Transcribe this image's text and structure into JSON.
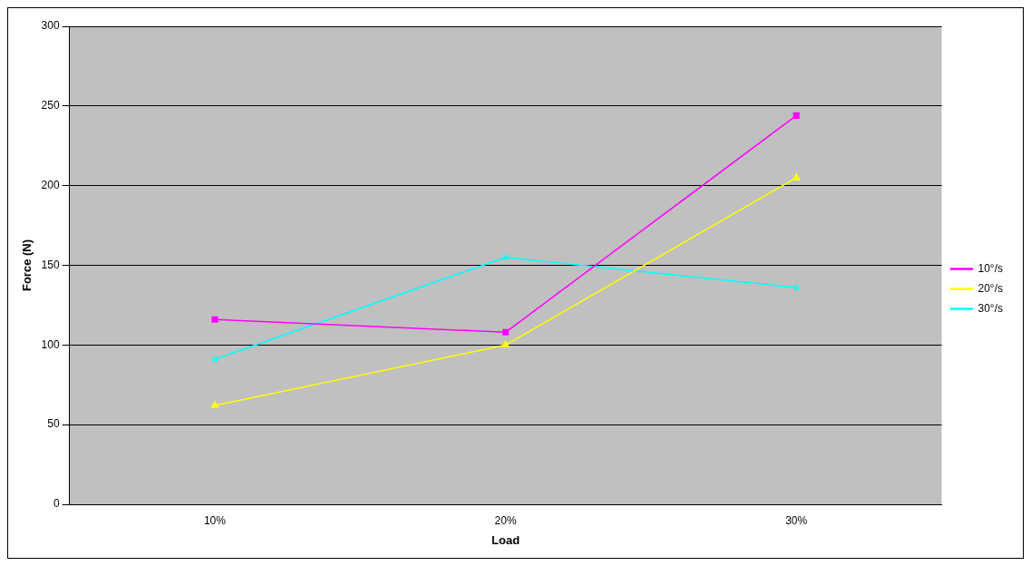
{
  "chart_data": {
    "type": "line",
    "xlabel": "Load",
    "ylabel": "Force (N)",
    "categories": [
      "10%",
      "20%",
      "30%"
    ],
    "series": [
      {
        "name": "10°/s",
        "color": "#ff00ff",
        "marker": "square",
        "values": [
          116,
          108,
          244
        ]
      },
      {
        "name": "20°/s",
        "color": "#ffff00",
        "marker": "triangle",
        "values": [
          62,
          100,
          205
        ]
      },
      {
        "name": "30°/s",
        "color": "#00ffff",
        "marker": "cross",
        "values": [
          91,
          155,
          136
        ]
      }
    ],
    "ylim": [
      0,
      300
    ],
    "yticks": [
      0,
      50,
      100,
      150,
      200,
      250,
      300
    ],
    "grid": "y",
    "legend": "right"
  }
}
